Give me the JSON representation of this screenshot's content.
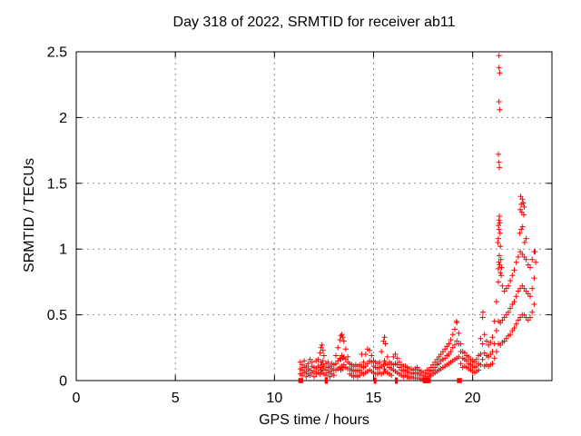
{
  "page": {
    "background": "#ffffff"
  },
  "chart_data": {
    "type": "scatter",
    "title": "Day 318 of 2022, SRMTID for receiver ab11",
    "xlabel": "GPS time / hours",
    "ylabel": "SRMTID / TECUs",
    "xlim": [
      0,
      24
    ],
    "ylim": [
      0,
      2.5
    ],
    "xticks": [
      0,
      5,
      10,
      15,
      20
    ],
    "yticks": [
      0,
      0.5,
      1,
      1.5,
      2,
      2.5
    ],
    "grid": true,
    "legend": "none",
    "marker": "plus",
    "colors": {
      "points": "#ff0000",
      "grid": "#8c8c8c",
      "axis": "#000000",
      "text": "#000000"
    },
    "bands_format": "[x_hours, y1, y2, ...] TECU values at that time",
    "bands": [
      [
        11.3,
        0.05,
        0.09,
        0.14
      ],
      [
        11.4,
        0.04,
        0.08,
        0.12
      ],
      [
        11.5,
        0.06,
        0.1,
        0.15
      ],
      [
        11.6,
        0.03,
        0.07,
        0.11
      ],
      [
        11.7,
        0.05,
        0.09,
        0.13
      ],
      [
        11.8,
        0.04,
        0.08,
        0.16
      ],
      [
        11.9,
        0.06,
        0.11,
        0.14
      ],
      [
        12.0,
        0.03,
        0.07,
        0.1
      ],
      [
        12.1,
        0.05,
        0.09,
        0.15
      ],
      [
        12.2,
        0.06,
        0.11,
        0.16
      ],
      [
        12.3,
        0.05,
        0.1,
        0.21
      ],
      [
        12.35,
        0.08,
        0.14,
        0.25
      ],
      [
        12.4,
        0.06,
        0.12,
        0.27
      ],
      [
        12.45,
        0.09,
        0.15,
        0.23
      ],
      [
        12.5,
        0.05,
        0.11,
        0.19
      ],
      [
        12.6,
        0.04,
        0.08,
        0.13
      ],
      [
        12.7,
        0.06,
        0.1,
        0.14
      ],
      [
        12.8,
        0.03,
        0.07,
        0.11
      ],
      [
        12.9,
        0.05,
        0.09,
        0.13
      ],
      [
        13.0,
        0.04,
        0.08,
        0.12
      ],
      [
        13.1,
        0.08,
        0.13,
        0.19
      ],
      [
        13.2,
        0.09,
        0.15,
        0.25
      ],
      [
        13.3,
        0.1,
        0.17,
        0.31
      ],
      [
        13.35,
        0.08,
        0.16,
        0.34
      ],
      [
        13.4,
        0.11,
        0.19,
        0.35
      ],
      [
        13.45,
        0.09,
        0.17,
        0.33
      ],
      [
        13.5,
        0.12,
        0.18,
        0.3
      ],
      [
        13.6,
        0.1,
        0.16,
        0.24
      ],
      [
        13.7,
        0.09,
        0.14,
        0.18
      ],
      [
        13.8,
        0.05,
        0.09,
        0.13
      ],
      [
        13.9,
        0.04,
        0.08,
        0.12
      ],
      [
        14.0,
        0.03,
        0.07,
        0.11
      ],
      [
        14.1,
        0.04,
        0.08,
        0.12
      ],
      [
        14.2,
        0.03,
        0.07,
        0.11
      ],
      [
        14.3,
        0.04,
        0.08,
        0.12
      ],
      [
        14.4,
        0.06,
        0.11,
        0.2
      ],
      [
        14.5,
        0.05,
        0.1,
        0.14
      ],
      [
        14.6,
        0.06,
        0.11,
        0.2
      ],
      [
        14.7,
        0.07,
        0.13,
        0.24
      ],
      [
        14.8,
        0.08,
        0.15,
        0.23
      ],
      [
        14.9,
        0.07,
        0.14,
        0.19
      ],
      [
        15.0,
        0.06,
        0.11,
        0.15
      ],
      [
        15.1,
        0.05,
        0.1,
        0.14
      ],
      [
        15.2,
        0.05,
        0.09,
        0.13
      ],
      [
        15.3,
        0.06,
        0.1,
        0.14
      ],
      [
        15.4,
        0.05,
        0.11,
        0.22
      ],
      [
        15.5,
        0.06,
        0.12,
        0.3
      ],
      [
        15.55,
        0.09,
        0.15,
        0.33
      ],
      [
        15.6,
        0.07,
        0.13,
        0.28
      ],
      [
        15.7,
        0.06,
        0.12,
        0.18
      ],
      [
        15.8,
        0.05,
        0.1,
        0.14
      ],
      [
        15.9,
        0.04,
        0.09,
        0.13
      ],
      [
        16.0,
        0.08,
        0.12,
        0.18
      ],
      [
        16.1,
        0.07,
        0.13,
        0.2
      ],
      [
        16.2,
        0.06,
        0.12,
        0.17
      ],
      [
        16.3,
        0.05,
        0.1,
        0.14
      ],
      [
        16.4,
        0.04,
        0.08,
        0.12
      ],
      [
        16.5,
        0.03,
        0.07,
        0.11
      ],
      [
        16.6,
        0.04,
        0.08,
        0.11
      ],
      [
        16.7,
        0.03,
        0.07,
        0.1
      ],
      [
        16.8,
        0.02,
        0.06,
        0.09
      ],
      [
        16.9,
        0.03,
        0.06,
        0.09
      ],
      [
        17.0,
        0.02,
        0.05,
        0.08
      ],
      [
        17.1,
        0.02,
        0.06,
        0.09
      ],
      [
        17.2,
        0.02,
        0.06,
        0.1
      ],
      [
        17.3,
        0.02,
        0.05,
        0.08
      ],
      [
        17.4,
        0.01,
        0.04,
        0.07
      ],
      [
        17.5,
        0.02,
        0.04,
        0.06
      ],
      [
        17.6,
        0.01,
        0.03,
        0.06
      ],
      [
        17.7,
        0.02,
        0.05,
        0.08
      ],
      [
        17.8,
        0.03,
        0.05,
        0.08
      ],
      [
        17.9,
        0.04,
        0.07,
        0.1
      ],
      [
        18.0,
        0.05,
        0.08,
        0.12
      ],
      [
        18.1,
        0.06,
        0.1,
        0.14
      ],
      [
        18.2,
        0.07,
        0.12,
        0.16
      ],
      [
        18.3,
        0.08,
        0.13,
        0.18
      ],
      [
        18.4,
        0.09,
        0.15,
        0.2
      ],
      [
        18.5,
        0.1,
        0.16,
        0.22
      ],
      [
        18.6,
        0.11,
        0.17,
        0.24
      ],
      [
        18.7,
        0.12,
        0.19,
        0.26
      ],
      [
        18.8,
        0.13,
        0.2,
        0.28
      ],
      [
        18.9,
        0.14,
        0.22,
        0.31
      ],
      [
        19.0,
        0.15,
        0.25,
        0.35
      ],
      [
        19.1,
        0.16,
        0.27,
        0.39
      ],
      [
        19.2,
        0.17,
        0.3,
        0.44
      ],
      [
        19.3,
        0.18,
        0.28,
        0.36
      ],
      [
        19.4,
        0.13,
        0.22,
        0.28
      ],
      [
        19.5,
        0.1,
        0.17,
        0.22
      ],
      [
        19.6,
        0.11,
        0.16,
        0.21
      ],
      [
        19.7,
        0.1,
        0.15,
        0.19
      ],
      [
        19.8,
        0.09,
        0.13,
        0.18
      ],
      [
        19.9,
        0.08,
        0.12,
        0.16
      ],
      [
        20.0,
        0.07,
        0.11,
        0.15
      ],
      [
        20.1,
        0.06,
        0.1,
        0.14
      ],
      [
        20.2,
        0.07,
        0.11,
        0.16
      ],
      [
        20.3,
        0.08,
        0.13,
        0.19
      ],
      [
        20.4,
        0.12,
        0.2,
        0.32
      ],
      [
        20.5,
        0.16,
        0.28,
        0.48
      ],
      [
        20.6,
        0.11,
        0.21,
        0.35
      ],
      [
        20.7,
        0.12,
        0.19,
        0.3
      ],
      [
        20.8,
        0.11,
        0.18,
        0.27
      ],
      [
        20.9,
        0.12,
        0.2,
        0.29
      ],
      [
        21.0,
        0.13,
        0.22,
        0.33
      ],
      [
        21.1,
        0.17,
        0.28,
        0.45
      ],
      [
        21.2,
        0.22,
        0.38,
        0.6
      ],
      [
        21.3,
        0.28,
        0.45,
        0.75
      ],
      [
        21.4,
        0.27,
        0.44,
        0.82
      ],
      [
        21.5,
        0.29,
        0.46,
        0.72
      ],
      [
        21.6,
        0.3,
        0.48,
        0.68
      ],
      [
        21.7,
        0.32,
        0.5,
        0.7
      ],
      [
        21.8,
        0.34,
        0.52,
        0.72
      ],
      [
        21.9,
        0.35,
        0.55,
        0.76
      ],
      [
        22.0,
        0.38,
        0.58,
        0.8
      ],
      [
        22.1,
        0.4,
        0.6,
        0.84
      ],
      [
        22.2,
        0.43,
        0.64,
        0.9
      ],
      [
        22.3,
        0.46,
        0.68,
        0.94
      ],
      [
        22.4,
        0.48,
        0.7,
        0.98
      ],
      [
        22.5,
        0.5,
        0.72,
        0.96
      ],
      [
        22.6,
        0.5,
        0.7,
        0.94
      ],
      [
        22.7,
        0.48,
        0.68,
        0.92
      ],
      [
        22.8,
        0.46,
        0.66,
        0.88
      ],
      [
        22.9,
        0.48,
        0.64,
        0.86
      ],
      [
        23.0,
        0.52,
        0.7,
        0.92
      ],
      [
        23.1,
        0.58,
        0.78,
        0.98
      ]
    ],
    "outliers": [
      [
        19.18,
        0.45
      ],
      [
        20.52,
        0.52
      ],
      [
        21.27,
        1.05
      ],
      [
        21.3,
        1.08
      ],
      [
        21.3,
        1.18
      ],
      [
        21.33,
        1.15
      ],
      [
        21.33,
        1.22
      ],
      [
        21.35,
        1.25
      ],
      [
        21.36,
        1.2
      ],
      [
        21.38,
        1.12
      ],
      [
        21.4,
        1.02
      ],
      [
        21.3,
        1.72
      ],
      [
        21.33,
        1.66
      ],
      [
        21.35,
        1.62
      ],
      [
        21.33,
        2.12
      ],
      [
        21.36,
        2.06
      ],
      [
        21.33,
        2.47
      ],
      [
        21.33,
        2.38
      ],
      [
        21.36,
        2.34
      ],
      [
        21.3,
        0.85
      ],
      [
        21.32,
        0.9
      ],
      [
        21.34,
        0.95
      ],
      [
        21.36,
        0.88
      ],
      [
        21.42,
        0.92
      ],
      [
        21.44,
        0.8
      ],
      [
        21.46,
        0.86
      ],
      [
        22.38,
        1.12
      ],
      [
        22.4,
        1.3
      ],
      [
        22.42,
        1.4
      ],
      [
        22.45,
        1.15
      ],
      [
        22.45,
        1.34
      ],
      [
        22.48,
        1.28
      ],
      [
        22.5,
        1.38
      ],
      [
        22.52,
        1.17
      ],
      [
        22.55,
        1.35
      ],
      [
        22.58,
        1.26
      ],
      [
        22.6,
        1.32
      ],
      [
        22.62,
        1.05
      ],
      [
        22.7,
        1.08
      ],
      [
        23.15,
        0.98
      ],
      [
        23.18,
        0.9
      ]
    ],
    "zero_markers": {
      "squares": [
        11.33,
        17.6,
        17.68,
        17.76,
        19.33
      ],
      "bars": [
        12.58,
        12.64,
        15.05,
        15.1,
        16.12,
        16.18
      ]
    }
  }
}
